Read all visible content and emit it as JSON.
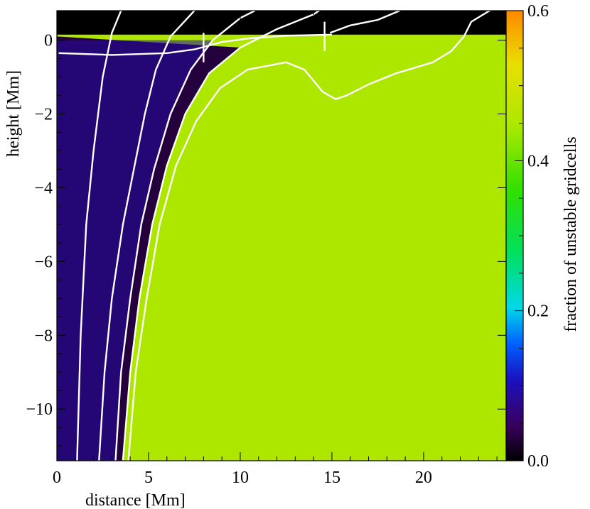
{
  "chart_data": {
    "type": "heatmap",
    "xlabel": "distance [Mm]",
    "ylabel": "height [Mm]",
    "colorbar_label": "fraction of unstable gridcells",
    "xlim": [
      0,
      24.5
    ],
    "ylim": [
      -11.4,
      0.8
    ],
    "x_ticks": [
      0,
      5,
      10,
      15,
      20
    ],
    "x_tick_labels": [
      "0",
      "5",
      "10",
      "15",
      "20"
    ],
    "y_ticks": [
      0,
      -2,
      -4,
      -6,
      -8,
      -10
    ],
    "y_tick_labels": [
      "0",
      "−2",
      "−4",
      "−6",
      "−8",
      "−10"
    ],
    "colorbar_range": [
      0.0,
      0.6
    ],
    "colorbar_ticks": [
      0.0,
      0.2,
      0.4,
      0.6
    ],
    "colorbar_tick_labels": [
      "0.0",
      "0.2",
      "0.4",
      "0.6"
    ],
    "colormap": [
      "#000000",
      "#3a0060",
      "#1a10c0",
      "#0060ff",
      "#00d8e8",
      "#00e060",
      "#30e000",
      "#a8e800",
      "#e8e000",
      "#ff8800"
    ],
    "colormap_stops": [
      0,
      0.08,
      0.18,
      0.26,
      0.34,
      0.46,
      0.6,
      0.74,
      0.88,
      1.0
    ],
    "background_fraction": 0.45,
    "contours": [
      {
        "color": "#ffffff",
        "points": [
          [
            1.1,
            -11.4
          ],
          [
            1.3,
            -8
          ],
          [
            1.6,
            -5
          ],
          [
            2.0,
            -3
          ],
          [
            2.5,
            -1
          ],
          [
            3.0,
            0.2
          ],
          [
            3.5,
            0.8
          ]
        ]
      },
      {
        "color": "#ffffff",
        "points": [
          [
            2.3,
            -11.4
          ],
          [
            2.6,
            -9
          ],
          [
            3.0,
            -7
          ],
          [
            3.6,
            -5
          ],
          [
            4.2,
            -3.5
          ],
          [
            4.8,
            -2
          ],
          [
            5.4,
            -0.8
          ],
          [
            6.2,
            0.1
          ],
          [
            7.5,
            0.8
          ]
        ]
      },
      {
        "color": "#ffffff",
        "points": [
          [
            3.2,
            -11.4
          ],
          [
            3.5,
            -9
          ],
          [
            4.0,
            -7
          ],
          [
            4.6,
            -5
          ],
          [
            5.3,
            -3.5
          ],
          [
            6.2,
            -2
          ],
          [
            7.3,
            -0.8
          ],
          [
            8.5,
            0
          ],
          [
            10.0,
            0.6
          ],
          [
            10.8,
            0.8
          ]
        ]
      },
      {
        "color": "#ffffff",
        "points": [
          [
            3.6,
            -11.4
          ],
          [
            4.0,
            -9
          ],
          [
            4.5,
            -7
          ],
          [
            5.2,
            -5
          ],
          [
            6.0,
            -3.4
          ],
          [
            7.0,
            -2
          ],
          [
            8.3,
            -0.9
          ],
          [
            10.0,
            -0.2
          ],
          [
            12.0,
            0.3
          ],
          [
            14.0,
            0.7
          ],
          [
            14.3,
            0.8
          ]
        ]
      },
      {
        "color": "#ffffff",
        "points": [
          [
            3.9,
            -11.4
          ],
          [
            4.3,
            -9
          ],
          [
            4.9,
            -7
          ],
          [
            5.6,
            -5
          ],
          [
            6.5,
            -3.4
          ],
          [
            7.6,
            -2.2
          ],
          [
            8.9,
            -1.3
          ],
          [
            10.4,
            -0.8
          ],
          [
            12.5,
            -0.6
          ],
          [
            13.5,
            -0.8
          ],
          [
            14.5,
            -1.4
          ],
          [
            15.2,
            -1.6
          ],
          [
            15.8,
            -1.5
          ],
          [
            17.0,
            -1.2
          ],
          [
            18.5,
            -0.9
          ],
          [
            20.5,
            -0.6
          ],
          [
            21.5,
            -0.3
          ],
          [
            22.2,
            0.1
          ],
          [
            22.6,
            0.5
          ],
          [
            23.6,
            0.8
          ],
          [
            24.5,
            0.9
          ]
        ]
      },
      {
        "color": "#ffffff",
        "points": [
          [
            14.9,
            0.2
          ],
          [
            16.0,
            0.4
          ],
          [
            17.5,
            0.55
          ],
          [
            18.7,
            0.8
          ]
        ]
      },
      {
        "color": "#ffffff",
        "points": [
          [
            0.1,
            -0.35
          ],
          [
            3.0,
            -0.4
          ],
          [
            6.0,
            -0.35
          ],
          [
            7.5,
            -0.25
          ],
          [
            9.0,
            -0.05
          ],
          [
            10.5,
            0.05
          ],
          [
            12.5,
            0.12
          ],
          [
            15.0,
            0.15
          ]
        ]
      }
    ],
    "markers": [
      {
        "x": 8.0,
        "y0": -0.6,
        "y1": 0.2
      },
      {
        "x": 14.6,
        "y0": -0.3,
        "y1": 0.5
      }
    ]
  }
}
